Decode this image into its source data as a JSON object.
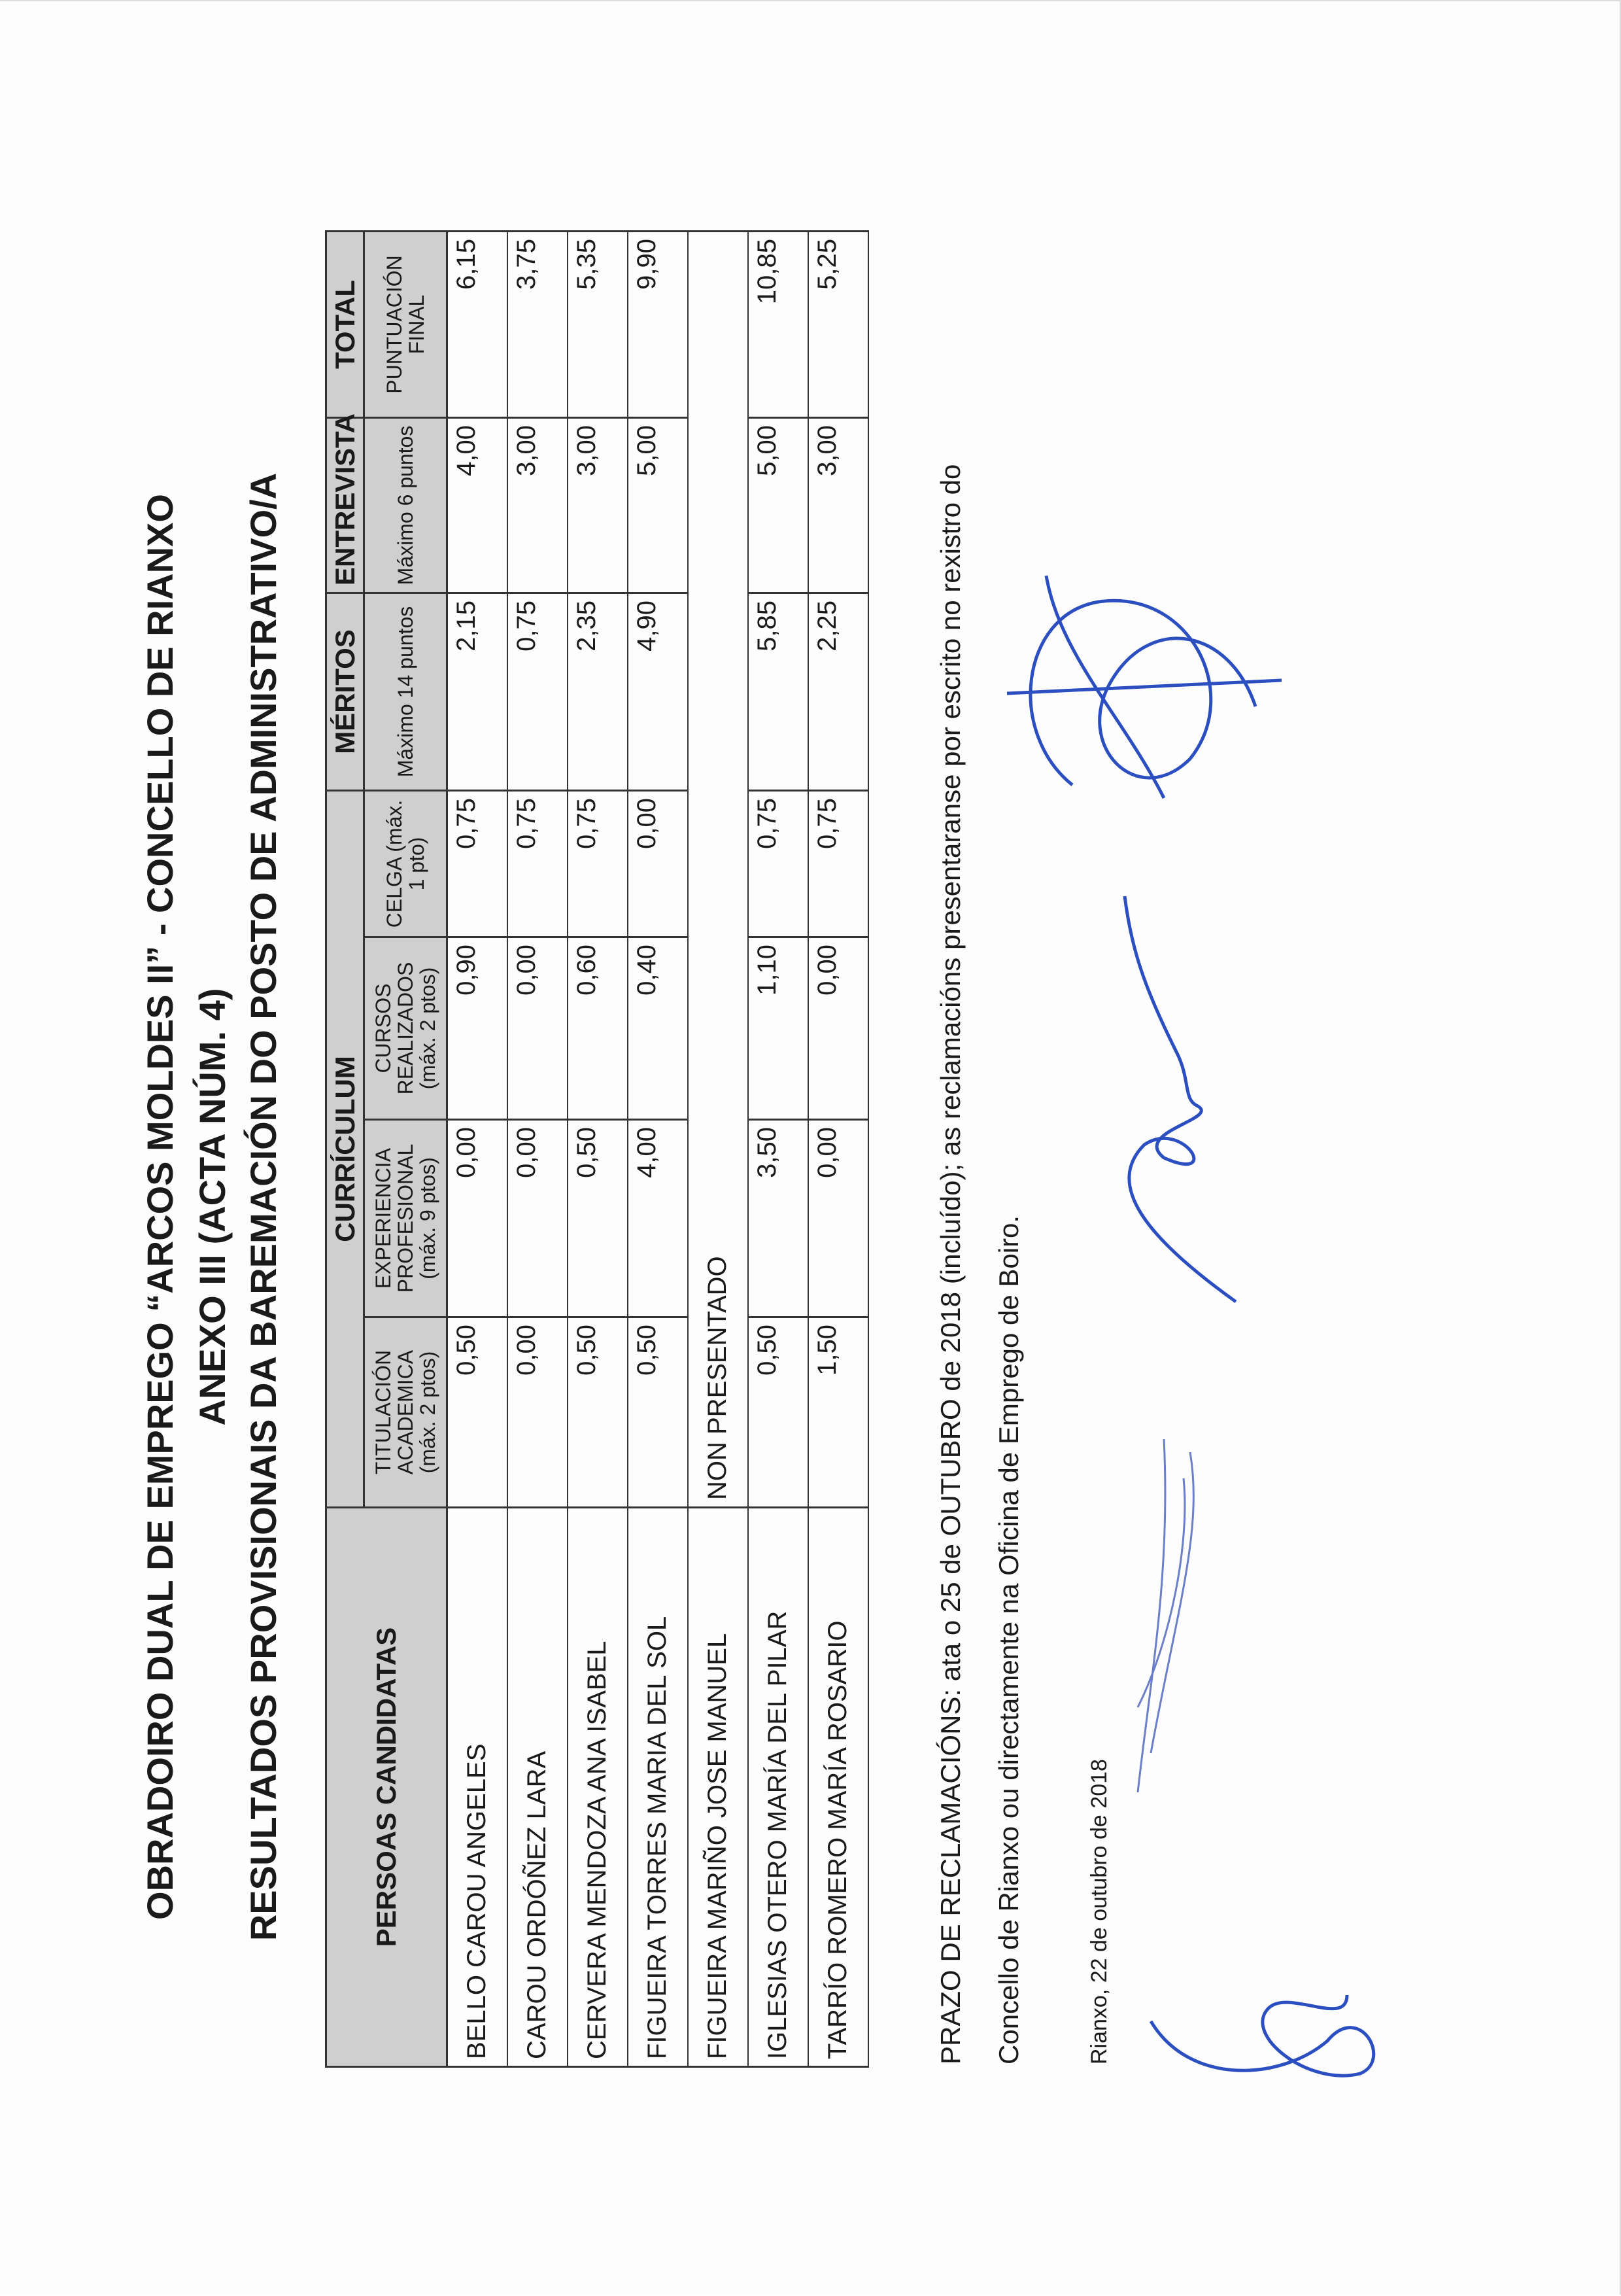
{
  "title": {
    "line1": "OBRADOIRO DUAL DE EMPREGO “ARCOS MOLDES II” - CONCELLO DE RIANXO",
    "line2": "ANEXO III (ACTA NÚM. 4)",
    "line3": "RESULTADOS PROVISIONAIS DA BAREMACIÓN DO POSTO DE ADMINISTRATIVO/A"
  },
  "table": {
    "headers": {
      "candidates": "PERSOAS CANDIDATAS",
      "curriculum": "CURRÍCULUM",
      "meritos": "MÉRITOS",
      "entrevista": "ENTREVISTA",
      "total": "TOTAL",
      "titulacion": "TITULACIÓN ACADEMICA (máx. 2 ptos)",
      "experiencia": "EXPERIENCIA PROFESIONAL (máx. 9 ptos)",
      "cursos": "CURSOS REALIZADOS (máx. 2 ptos)",
      "celga": "CELGA (máx. 1 pto)",
      "meritos_max": "Máximo 14 puntos",
      "entrevista_max": "Máximo 6 puntos",
      "puntuacion": "PUNTUACIÓN FINAL"
    },
    "rows": [
      {
        "name": "BELLO CAROU ANGELES",
        "titulacion": "0,50",
        "experiencia": "0,00",
        "cursos": "0,90",
        "celga": "0,75",
        "meritos": "2,15",
        "entrevista": "4,00",
        "total": "6,15"
      },
      {
        "name": "CAROU ORDÓÑEZ LARA",
        "titulacion": "0,00",
        "experiencia": "0,00",
        "cursos": "0,00",
        "celga": "0,75",
        "meritos": "0,75",
        "entrevista": "3,00",
        "total": "3,75"
      },
      {
        "name": "CERVERA MENDOZA ANA ISABEL",
        "titulacion": "0,50",
        "experiencia": "0,50",
        "cursos": "0,60",
        "celga": "0,75",
        "meritos": "2,35",
        "entrevista": "3,00",
        "total": "5,35"
      },
      {
        "name": "FIGUEIRA TORRES MARIA DEL SOL",
        "titulacion": "0,50",
        "experiencia": "4,00",
        "cursos": "0,40",
        "celga": "0,00",
        "meritos": "4,90",
        "entrevista": "5,00",
        "total": "9,90"
      },
      {
        "name": "FIGUEIRA MARIÑO JOSE MANUEL",
        "status": "NON PRESENTADO"
      },
      {
        "name": "IGLESIAS OTERO MARÍA DEL PILAR",
        "titulacion": "0,50",
        "experiencia": "3,50",
        "cursos": "1,10",
        "celga": "0,75",
        "meritos": "5,85",
        "entrevista": "5,00",
        "total": "10,85"
      },
      {
        "name": "TARRÍO ROMERO MARÍA ROSARIO",
        "titulacion": "1,50",
        "experiencia": "0,00",
        "cursos": "0,00",
        "celga": "0,75",
        "meritos": "2,25",
        "entrevista": "3,00",
        "total": "5,25"
      }
    ]
  },
  "footer": {
    "line1": "PRAZO DE RECLAMACIÓNS: ata o 25 de OUTUBRO de 2018 (incluído); as reclamacións presentaranse por escrito no rexistro do",
    "line2": "Concello de Rianxo ou directamente na Oficina de Emprego de Boiro.",
    "date": "Rianxo, 22 de outubro de 2018"
  },
  "colors": {
    "header_bg": "#cfcfcf",
    "signature_ink": "#2b4fc0"
  }
}
